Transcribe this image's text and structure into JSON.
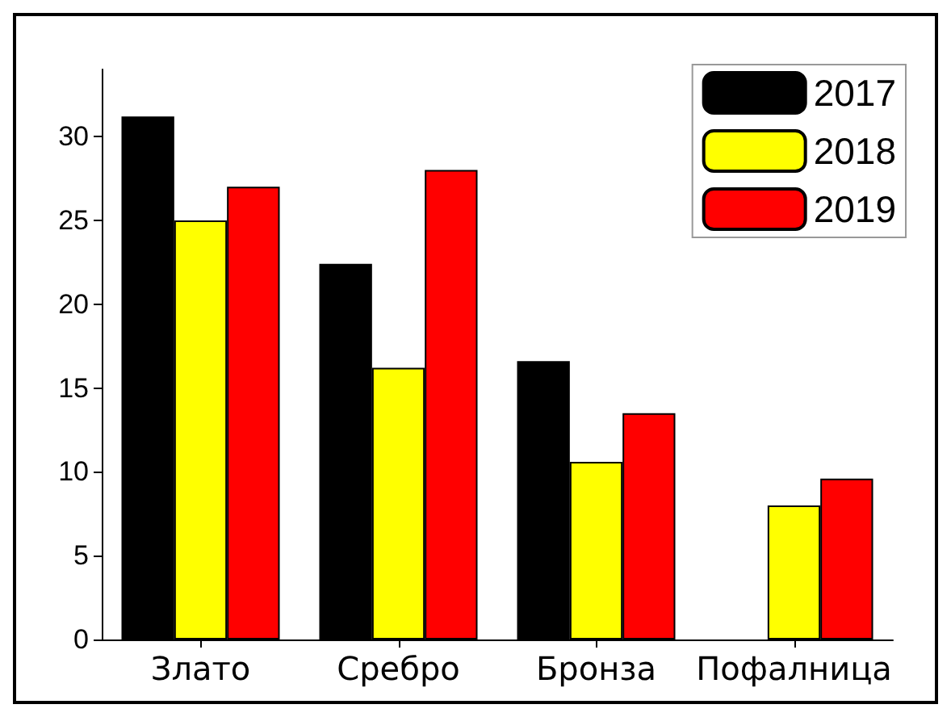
{
  "chart_data": {
    "type": "bar",
    "categories": [
      "Злато",
      "Сребро",
      "Бронза",
      "Пофалница"
    ],
    "series": [
      {
        "name": "2017",
        "color": "#000000",
        "values": [
          31.2,
          22.4,
          16.6,
          null
        ]
      },
      {
        "name": "2018",
        "color": "#ffff00",
        "values": [
          25,
          16.2,
          10.6,
          8
        ]
      },
      {
        "name": "2019",
        "color": "#ff0000",
        "values": [
          27,
          28,
          13.5,
          9.6
        ]
      }
    ],
    "ylim": [
      0,
      34
    ],
    "yticks": [
      0,
      5,
      10,
      15,
      20,
      25,
      30
    ],
    "grid": false,
    "legend": "top right"
  }
}
